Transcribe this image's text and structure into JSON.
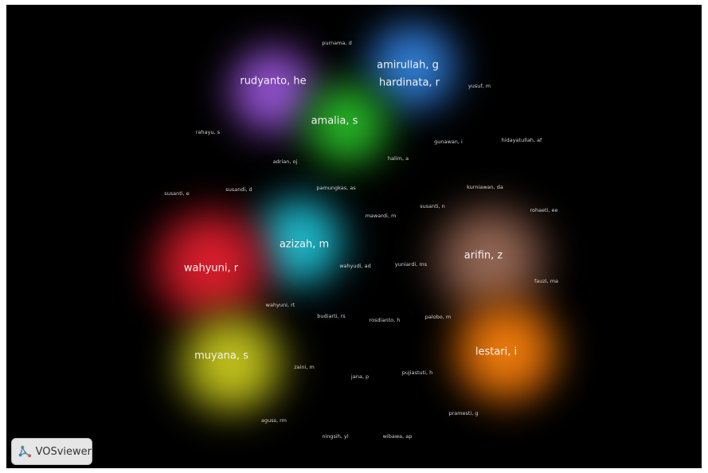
{
  "logo": {
    "text": "VOSviewer",
    "icon": "vosviewer-logo-icon"
  },
  "clusters": [
    {
      "id": "purple",
      "color": "#9b59d6"
    },
    {
      "id": "blue",
      "color": "#2f7fd6"
    },
    {
      "id": "green",
      "color": "#2fbf2f"
    },
    {
      "id": "cyan",
      "color": "#1fc9d9"
    },
    {
      "id": "red",
      "color": "#e02030"
    },
    {
      "id": "brown",
      "color": "#a0705a"
    },
    {
      "id": "orange",
      "color": "#f07a10"
    },
    {
      "id": "yellow",
      "color": "#c8c820"
    }
  ],
  "nodes": [
    {
      "label": "rudyanto, he",
      "size": "big"
    },
    {
      "label": "amirullah, g",
      "size": "big"
    },
    {
      "label": "hardinata, r",
      "size": "big"
    },
    {
      "label": "amalia, s",
      "size": "big"
    },
    {
      "label": "azizah, m",
      "size": "big"
    },
    {
      "label": "wahyuni, r",
      "size": "big"
    },
    {
      "label": "arifin, z",
      "size": "big"
    },
    {
      "label": "lestari, i",
      "size": "big"
    },
    {
      "label": "muyana, s",
      "size": "big"
    },
    {
      "label": "purnama, d",
      "size": "small"
    },
    {
      "label": "yusuf, m",
      "size": "small"
    },
    {
      "label": "rahayu, s",
      "size": "small"
    },
    {
      "label": "gunawan, i",
      "size": "small"
    },
    {
      "label": "hidayatullah, af",
      "size": "small"
    },
    {
      "label": "adrian, oj",
      "size": "small"
    },
    {
      "label": "halim, a",
      "size": "small"
    },
    {
      "label": "susanti, e",
      "size": "small"
    },
    {
      "label": "susandi, d",
      "size": "small"
    },
    {
      "label": "pamungkas, as",
      "size": "small"
    },
    {
      "label": "kurniawan, da",
      "size": "small"
    },
    {
      "label": "susanti, n",
      "size": "small"
    },
    {
      "label": "mawardi, m",
      "size": "small"
    },
    {
      "label": "rohaeti, ee",
      "size": "small"
    },
    {
      "label": "wahyudi, ad",
      "size": "small"
    },
    {
      "label": "yuniardi, ms",
      "size": "small"
    },
    {
      "label": "fauzi, ma",
      "size": "small"
    },
    {
      "label": "wahyuni, rt",
      "size": "small"
    },
    {
      "label": "budiarti, rs",
      "size": "small"
    },
    {
      "label": "rosdianto, h",
      "size": "small"
    },
    {
      "label": "palobo, m",
      "size": "small"
    },
    {
      "label": "zaini, m",
      "size": "small"
    },
    {
      "label": "jana, p",
      "size": "small"
    },
    {
      "label": "pujiastuti, h",
      "size": "small"
    },
    {
      "label": "pramesti, g",
      "size": "small"
    },
    {
      "label": "aguss, rm",
      "size": "small"
    },
    {
      "label": "ningsih, yl",
      "size": "small"
    },
    {
      "label": "wibawa, ap",
      "size": "small"
    }
  ]
}
